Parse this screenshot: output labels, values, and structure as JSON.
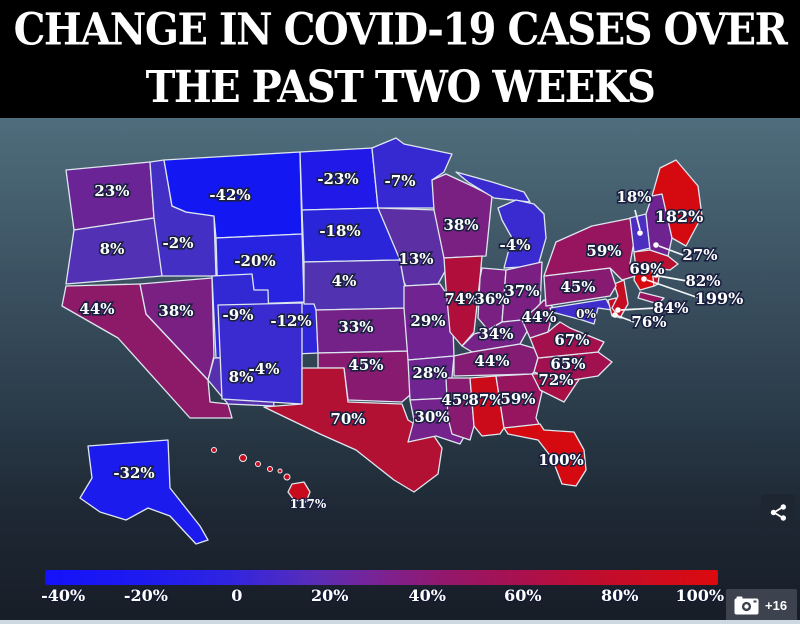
{
  "header": {
    "title_line1": "CHANGE IN COVID-19 CASES OVER",
    "title_line2": "THE PAST TWO WEEKS"
  },
  "chart_data": {
    "type": "choropleth-map",
    "title": "Change in COVID-19 cases over the past two weeks",
    "unit": "percent change",
    "legend": {
      "min": -40,
      "max": 100,
      "tick_labels": [
        "-40%",
        "-20%",
        "0",
        "20%",
        "40%",
        "60%",
        "80%",
        "100%"
      ],
      "gradient": [
        "#1511fa 0%",
        "#1d1af0 14%",
        "#2f24e2 27%",
        "#5a2db8 40%",
        "#7c2292 50%",
        "#94176a 60%",
        "#a81150 70%",
        "#c00d2e 82%",
        "#dc0a0e 100%"
      ]
    },
    "states": [
      {
        "id": "WA",
        "name": "Washington",
        "value": "23%",
        "fill": "#6b2496"
      },
      {
        "id": "OR",
        "name": "Oregon",
        "value": "8%",
        "fill": "#5331b4"
      },
      {
        "id": "CA",
        "name": "California",
        "value": "44%",
        "fill": "#8c1a69"
      },
      {
        "id": "ID",
        "name": "Idaho",
        "value": "-2%",
        "fill": "#442fc4"
      },
      {
        "id": "NV",
        "name": "Nevada",
        "value": "38%",
        "fill": "#7b2083"
      },
      {
        "id": "MT",
        "name": "Montana",
        "value": "-42%",
        "fill": "#1317f2"
      },
      {
        "id": "WY",
        "name": "Wyoming",
        "value": "-20%",
        "fill": "#2723e0"
      },
      {
        "id": "UT",
        "name": "Utah",
        "value": "-9%",
        "fill": "#3229d4"
      },
      {
        "id": "CO",
        "name": "Colorado",
        "value": "-12%",
        "fill": "#2e26d8"
      },
      {
        "id": "AZ",
        "name": "Arizona",
        "value": "8%",
        "fill": "#5531b0"
      },
      {
        "id": "NM",
        "name": "New Mexico",
        "value": "-4%",
        "fill": "#392bd0"
      },
      {
        "id": "ND",
        "name": "North Dakota",
        "value": "-23%",
        "fill": "#2119e8"
      },
      {
        "id": "SD",
        "name": "South Dakota",
        "value": "-18%",
        "fill": "#2b25da"
      },
      {
        "id": "NE",
        "name": "Nebraska",
        "value": "4%",
        "fill": "#5133b2"
      },
      {
        "id": "KS",
        "name": "Kansas",
        "value": "33%",
        "fill": "#752288"
      },
      {
        "id": "OK",
        "name": "Oklahoma",
        "value": "45%",
        "fill": "#881a70"
      },
      {
        "id": "TX",
        "name": "Texas",
        "value": "70%",
        "fill": "#b31134"
      },
      {
        "id": "MN",
        "name": "Minnesota",
        "value": "-7%",
        "fill": "#3729d2"
      },
      {
        "id": "IA",
        "name": "Iowa",
        "value": "13%",
        "fill": "#5d2fa4"
      },
      {
        "id": "MO",
        "name": "Missouri",
        "value": "29%",
        "fill": "#712391"
      },
      {
        "id": "AR",
        "name": "Arkansas",
        "value": "28%",
        "fill": "#6f2492"
      },
      {
        "id": "LA",
        "name": "Louisiana",
        "value": "30%",
        "fill": "#74228c"
      },
      {
        "id": "WI",
        "name": "Wisconsin",
        "value": "38%",
        "fill": "#7b2083"
      },
      {
        "id": "IL",
        "name": "Illinois",
        "value": "74%",
        "fill": "#b20e3c"
      },
      {
        "id": "MI",
        "name": "Michigan",
        "value": "-4%",
        "fill": "#392bd0"
      },
      {
        "id": "IN",
        "name": "Indiana",
        "value": "36%",
        "fill": "#7a2083"
      },
      {
        "id": "OH",
        "name": "Ohio",
        "value": "37%",
        "fill": "#7b2082"
      },
      {
        "id": "KY",
        "name": "Kentucky",
        "value": "34%",
        "fill": "#762287"
      },
      {
        "id": "TN",
        "name": "Tennessee",
        "value": "44%",
        "fill": "#851c74"
      },
      {
        "id": "MS",
        "name": "Mississippi",
        "value": "45%",
        "fill": "#881a70"
      },
      {
        "id": "AL",
        "name": "Alabama",
        "value": "87%",
        "fill": "#cb0b1a"
      },
      {
        "id": "GA",
        "name": "Georgia",
        "value": "59%",
        "fill": "#97145e"
      },
      {
        "id": "FL",
        "name": "Florida",
        "value": "100%",
        "fill": "#d40a10"
      },
      {
        "id": "SC",
        "name": "South Carolina",
        "value": "72%",
        "fill": "#a90f45"
      },
      {
        "id": "NC",
        "name": "North Carolina",
        "value": "65%",
        "fill": "#a11150"
      },
      {
        "id": "VA",
        "name": "Virginia",
        "value": "67%",
        "fill": "#a4104b"
      },
      {
        "id": "WV",
        "name": "West Virginia",
        "value": "44%",
        "fill": "#851c74"
      },
      {
        "id": "MD",
        "name": "Maryland",
        "value": "0%",
        "fill": "#3f2ecb"
      },
      {
        "id": "DE",
        "name": "Delaware",
        "value": "76%",
        "fill": "#c30d24"
      },
      {
        "id": "NJ",
        "name": "New Jersey",
        "value": "84%",
        "fill": "#c40d22"
      },
      {
        "id": "PA",
        "name": "Pennsylvania",
        "value": "45%",
        "fill": "#871b72"
      },
      {
        "id": "NY",
        "name": "New York",
        "value": "59%",
        "fill": "#97145e"
      },
      {
        "id": "LI",
        "name": "Long Island (NY)",
        "value": "",
        "fill": "#97145e"
      },
      {
        "id": "CT",
        "name": "Connecticut",
        "value": "199%",
        "fill": "#d80a0e"
      },
      {
        "id": "RI",
        "name": "Rhode Island",
        "value": "82%",
        "fill": "#c00d28"
      },
      {
        "id": "MA",
        "name": "Massachusetts",
        "value": "69%",
        "fill": "#b91032"
      },
      {
        "id": "VT",
        "name": "Vermont",
        "value": "18%",
        "fill": "#4c2ec0"
      },
      {
        "id": "NH",
        "name": "New Hampshire",
        "value": "27%",
        "fill": "#6f2391"
      },
      {
        "id": "ME",
        "name": "Maine",
        "value": "182%",
        "fill": "#d40a10"
      },
      {
        "id": "AK",
        "name": "Alaska",
        "value": "-32%",
        "fill": "#1b1bee"
      },
      {
        "id": "HI",
        "name": "Hawaii",
        "value": "117%",
        "fill": "#c80b1c"
      }
    ]
  },
  "footer": {
    "camera_badge": "+16"
  }
}
